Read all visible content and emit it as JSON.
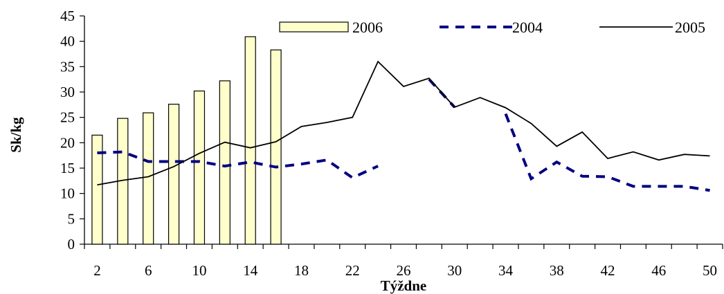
{
  "chart_data": {
    "type": "bar+line",
    "xlabel": "Týždne",
    "ylabel": "Sk/kg",
    "ylim": [
      0,
      45
    ],
    "yticks": [
      "0",
      "5",
      "10",
      "15",
      "20",
      "25",
      "30",
      "35",
      "40",
      "45"
    ],
    "xticks": [
      "2",
      "6",
      "10",
      "14",
      "18",
      "22",
      "26",
      "30",
      "34",
      "38",
      "42",
      "46",
      "50"
    ],
    "xlim": [
      1,
      51
    ],
    "grid": false,
    "legend_position": "top",
    "series": [
      {
        "name": "2006",
        "kind": "bar",
        "color": "#FFFFCC",
        "points": [
          [
            2,
            21.5
          ],
          [
            4,
            24.8
          ],
          [
            6,
            25.9
          ],
          [
            8,
            27.6
          ],
          [
            10,
            30.2
          ],
          [
            12,
            32.2
          ],
          [
            14,
            40.9
          ],
          [
            16,
            38.3
          ]
        ]
      },
      {
        "name": "2004",
        "kind": "line-dashed",
        "color": "#000080",
        "segments": [
          [
            [
              2,
              18.0
            ],
            [
              4,
              18.2
            ],
            [
              6,
              16.3
            ],
            [
              8,
              16.3
            ],
            [
              10,
              16.3
            ],
            [
              12,
              15.4
            ],
            [
              14,
              16.2
            ],
            [
              16,
              15.2
            ],
            [
              18,
              15.8
            ],
            [
              20,
              16.6
            ],
            [
              22,
              13.1
            ],
            [
              24,
              15.4
            ]
          ],
          [
            [
              28,
              32.5
            ],
            [
              30,
              27.0
            ]
          ],
          [
            [
              34,
              25.7
            ],
            [
              36,
              12.9
            ],
            [
              38,
              16.2
            ],
            [
              40,
              13.4
            ],
            [
              42,
              13.3
            ],
            [
              44,
              11.4
            ],
            [
              46,
              11.4
            ],
            [
              48,
              11.4
            ],
            [
              50,
              10.6
            ]
          ]
        ]
      },
      {
        "name": "2005",
        "kind": "line-solid",
        "color": "#000000",
        "points": [
          [
            2,
            11.7
          ],
          [
            4,
            12.6
          ],
          [
            6,
            13.3
          ],
          [
            8,
            15.3
          ],
          [
            10,
            17.9
          ],
          [
            12,
            20.1
          ],
          [
            14,
            19.0
          ],
          [
            16,
            20.2
          ],
          [
            18,
            23.2
          ],
          [
            20,
            24.0
          ],
          [
            22,
            25.0
          ],
          [
            24,
            36.0
          ],
          [
            26,
            31.1
          ],
          [
            28,
            32.7
          ],
          [
            30,
            27.0
          ],
          [
            32,
            28.9
          ],
          [
            34,
            26.9
          ],
          [
            36,
            23.8
          ],
          [
            38,
            19.3
          ],
          [
            40,
            22.1
          ],
          [
            42,
            16.9
          ],
          [
            44,
            18.2
          ],
          [
            46,
            16.6
          ],
          [
            48,
            17.7
          ],
          [
            50,
            17.4
          ]
        ]
      }
    ]
  }
}
